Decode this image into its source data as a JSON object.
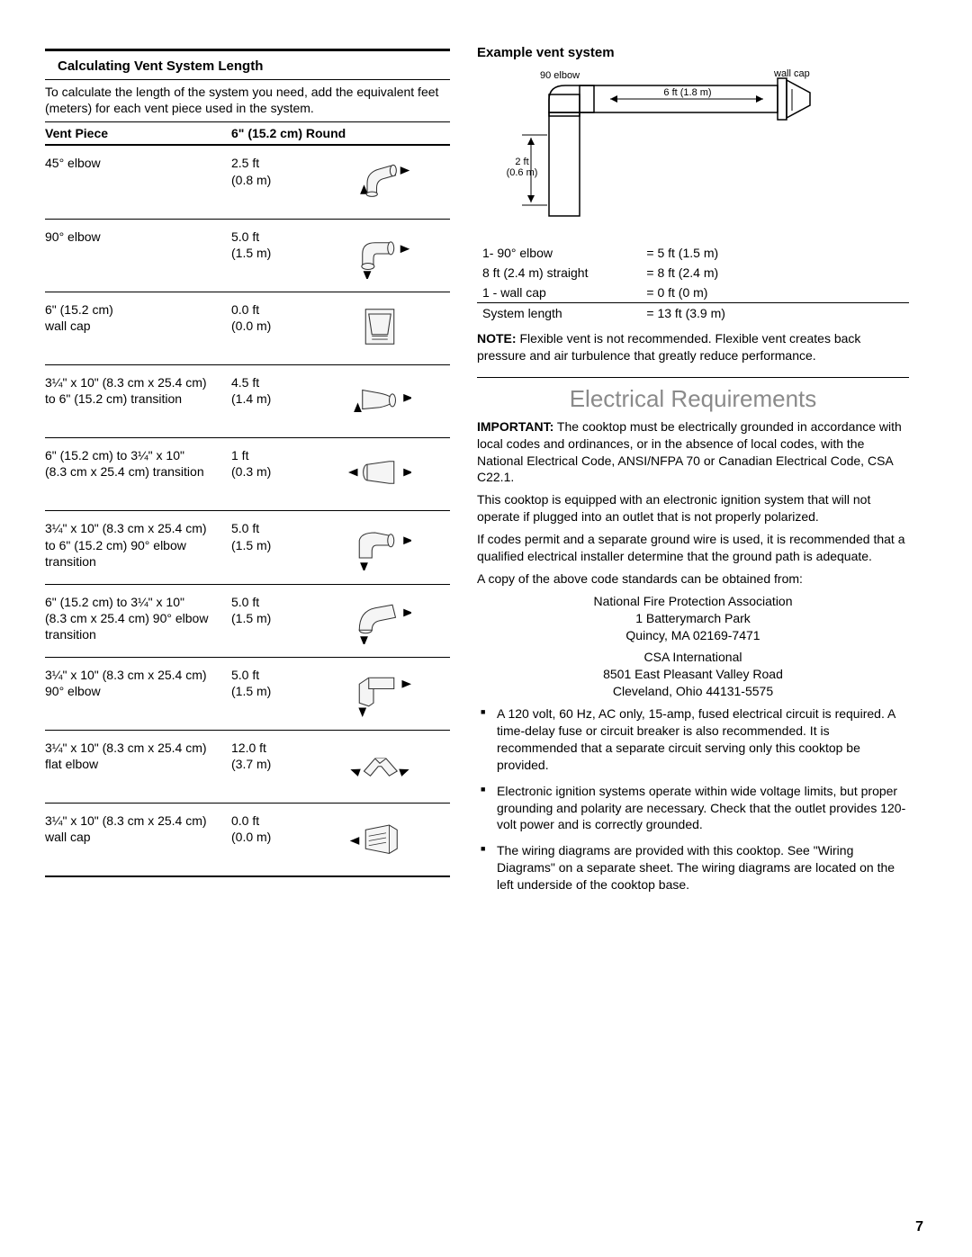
{
  "page_number": "7",
  "left": {
    "title": "Calculating Vent System Length",
    "intro": "To calculate the length of the system you need, add the equivalent feet (meters) for each vent piece used in the system.",
    "table": {
      "header_piece": "Vent Piece",
      "header_round": "6\" (15.2 cm) Round",
      "rows": [
        {
          "piece": "45° elbow",
          "val_ft": "2.5 ft",
          "val_m": "(0.8 m)"
        },
        {
          "piece": "90° elbow",
          "val_ft": "5.0 ft",
          "val_m": "(1.5 m)"
        },
        {
          "piece": "6\" (15.2 cm)\nwall cap",
          "val_ft": "0.0 ft",
          "val_m": "(0.0 m)"
        },
        {
          "piece": "3¼\" x 10\" (8.3 cm x 25.4 cm)\nto 6\" (15.2 cm) transition",
          "val_ft": "4.5 ft",
          "val_m": "(1.4 m)"
        },
        {
          "piece": "6\" (15.2 cm) to 3¼\" x 10\"\n(8.3 cm x 25.4 cm) transition",
          "val_ft": "1 ft",
          "val_m": "(0.3 m)"
        },
        {
          "piece": "3¼\" x 10\" (8.3 cm x 25.4 cm)\nto 6\" (15.2 cm) 90° elbow\ntransition",
          "val_ft": "5.0 ft",
          "val_m": "(1.5 m)"
        },
        {
          "piece": "6\" (15.2 cm) to 3¼\" x 10\"\n(8.3 cm x 25.4 cm) 90° elbow\ntransition",
          "val_ft": "5.0 ft",
          "val_m": "(1.5 m)"
        },
        {
          "piece": "3¼\" x 10\" (8.3 cm x 25.4 cm)\n90° elbow",
          "val_ft": "5.0 ft",
          "val_m": "(1.5 m)"
        },
        {
          "piece": "3¼\" x 10\" (8.3 cm x 25.4 cm)\nflat elbow",
          "val_ft": "12.0 ft",
          "val_m": "(3.7 m)"
        },
        {
          "piece": "3¼\" x 10\" (8.3 cm x 25.4 cm)\nwall cap",
          "val_ft": "0.0 ft",
          "val_m": "(0.0 m)"
        }
      ]
    }
  },
  "right": {
    "ex_title": "Example vent system",
    "diagram": {
      "label_elbow": "90  elbow",
      "label_wallcap": "wall cap",
      "label_h": "6 ft (1.8 m)",
      "label_v1": "2 ft",
      "label_v2": "(0.6 m)"
    },
    "ex_rows": [
      {
        "l": "1- 90° elbow",
        "r": "= 5 ft (1.5 m)"
      },
      {
        "l": "8 ft (2.4 m) straight",
        "r": "= 8 ft (2.4 m)"
      },
      {
        "l": "1 - wall cap",
        "r": "= 0 ft (0 m)"
      }
    ],
    "ex_total": {
      "l": "System length",
      "r": "= 13 ft (3.9 m)"
    },
    "note_bold": "NOTE:",
    "note_text": " Flexible vent is not recommended. Flexible vent creates back pressure and air turbulence that greatly reduce performance.",
    "h2": "Electrical Requirements",
    "imp_bold": "IMPORTANT:",
    "imp_text": " The cooktop must be electrically grounded in accordance with local codes and ordinances, or in the absence of local codes, with the National Electrical Code, ANSI/NFPA 70 or Canadian Electrical Code, CSA C22.1.",
    "p1": "This cooktop is equipped with an electronic ignition system that will not operate if plugged into an outlet that is not properly polarized.",
    "p2": "If codes permit and a separate ground wire is used, it is recommended that a qualified electrical installer determine that the ground path is adequate.",
    "p3": "A copy of the above code standards can be obtained from:",
    "addr1_l1": "National Fire Protection Association",
    "addr1_l2": "1 Batterymarch Park",
    "addr1_l3": "Quincy, MA 02169-7471",
    "addr2_l1": "CSA International",
    "addr2_l2": "8501 East Pleasant Valley Road",
    "addr2_l3": "Cleveland, Ohio 44131-5575",
    "bullets": [
      "A 120 volt, 60 Hz, AC only, 15-amp, fused electrical circuit is required. A time-delay fuse or circuit breaker is also recommended. It is recommended that a separate circuit serving only this cooktop be provided.",
      "Electronic ignition systems operate within wide voltage limits, but proper grounding and polarity are necessary. Check that the outlet provides 120-volt power and is correctly grounded.",
      "The wiring diagrams are provided with this cooktop. See \"Wiring Diagrams\" on a separate sheet. The wiring diagrams are located on the left underside of the cooktop base."
    ]
  }
}
